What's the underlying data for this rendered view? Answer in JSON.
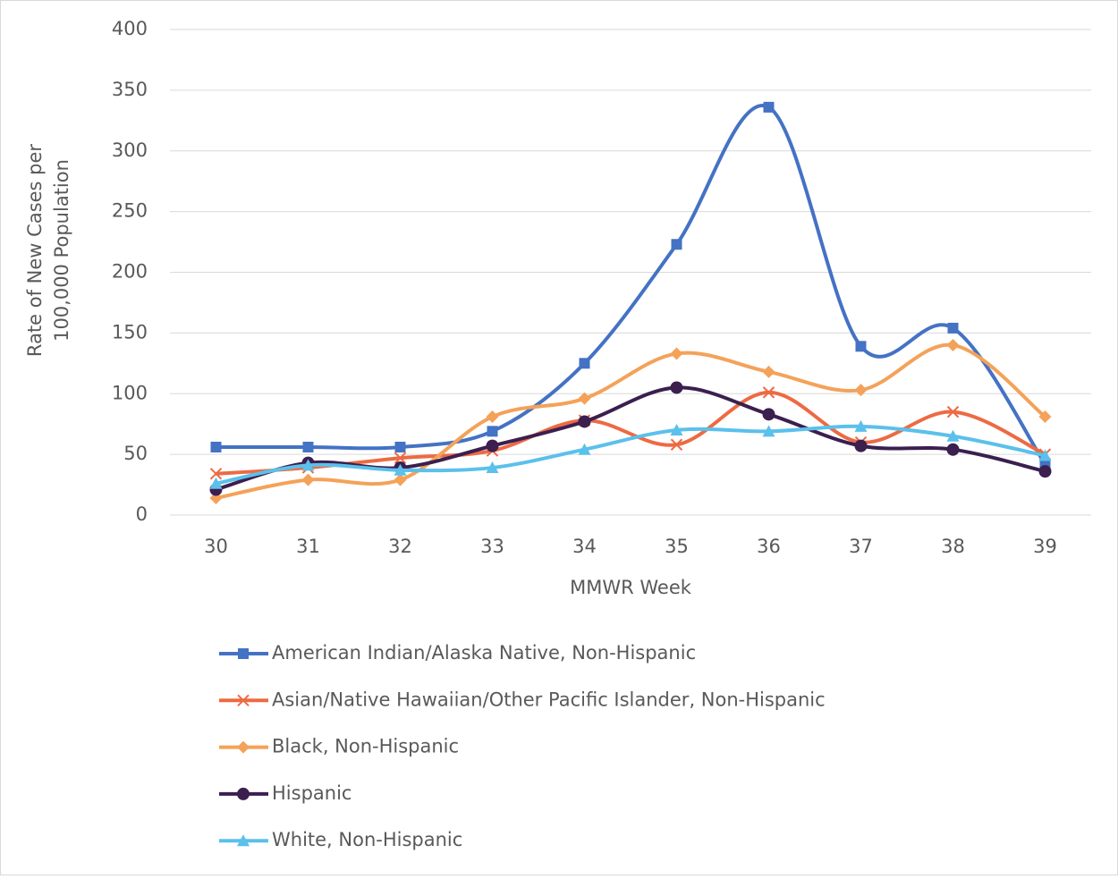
{
  "chart_data": {
    "type": "line",
    "smooth": true,
    "xlabel": "MMWR Week",
    "ylabel": [
      "Rate of New Cases per",
      "100,000 Population"
    ],
    "categories": [
      "30",
      "31",
      "32",
      "33",
      "34",
      "35",
      "36",
      "37",
      "38",
      "39"
    ],
    "series": [
      {
        "name": "American Indian/Alaska Native, Non-Hispanic",
        "color": "#4472c4",
        "marker": "square",
        "values": [
          56,
          56,
          56,
          69,
          125,
          223,
          336,
          139,
          154,
          42
        ]
      },
      {
        "name": "Asian/Native Hawaiian/Other Pacific Islander, Non-Hispanic",
        "color": "#ed6a43",
        "marker": "x",
        "values": [
          34,
          39,
          47,
          53,
          78,
          58,
          101,
          60,
          85,
          50
        ]
      },
      {
        "name": "Black, Non-Hispanic",
        "color": "#f4a259",
        "marker": "diamond",
        "values": [
          14,
          29,
          29,
          81,
          96,
          133,
          118,
          103,
          140,
          81
        ]
      },
      {
        "name": "Hispanic",
        "color": "#3b1f4f",
        "marker": "circle",
        "values": [
          21,
          43,
          39,
          57,
          77,
          105,
          83,
          57,
          54,
          36
        ]
      },
      {
        "name": "White, Non-Hispanic",
        "color": "#5bc0eb",
        "marker": "triangle",
        "values": [
          26,
          41,
          37,
          39,
          54,
          70,
          69,
          73,
          65,
          49
        ]
      }
    ],
    "ylim": [
      0,
      400
    ],
    "yticks": [
      0,
      50,
      100,
      150,
      200,
      250,
      300,
      350,
      400
    ],
    "grid": true,
    "legend": "bottom"
  }
}
